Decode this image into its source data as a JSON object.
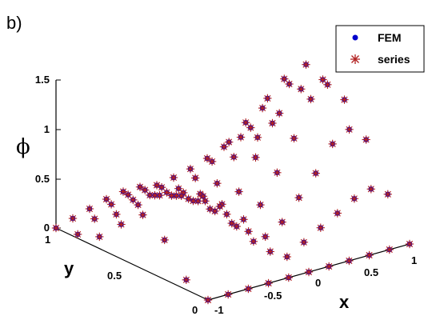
{
  "panel_label": "b)",
  "chart_data": {
    "type": "scatter",
    "view": "3d",
    "xlabel": "x",
    "ylabel": "y",
    "zlabel": "ϕ",
    "x_ticks": [
      "-1",
      "-0.5",
      "0",
      "0.5",
      "1"
    ],
    "y_ticks": [
      "0",
      "0.5",
      "1"
    ],
    "z_ticks": [
      "0",
      "0.5",
      "1",
      "1.5"
    ],
    "xlim": [
      -1,
      1
    ],
    "ylim": [
      0,
      1
    ],
    "zlim": [
      0,
      1.5
    ],
    "grid": false,
    "legend_position": "top-right",
    "series": [
      {
        "name": "FEM",
        "marker": "dot",
        "color": "#0000cc"
      },
      {
        "name": "series",
        "marker": "asterisk",
        "color": "#b22222"
      }
    ],
    "points": [
      {
        "x": -1.0,
        "y": 1.0,
        "z": 0.0
      },
      {
        "x": -1.0,
        "y": 0.857,
        "z": 0.04
      },
      {
        "x": -1.0,
        "y": 0.714,
        "z": 0.12
      },
      {
        "x": -1.0,
        "y": 0.571,
        "z": 0.35
      },
      {
        "x": -1.0,
        "y": 0.429,
        "z": 0.55
      },
      {
        "x": -1.0,
        "y": 0.286,
        "z": 0.4
      },
      {
        "x": -1.0,
        "y": 0.143,
        "z": 0.1
      },
      {
        "x": -0.833,
        "y": 1.0,
        "z": 0.05
      },
      {
        "x": -0.833,
        "y": 0.857,
        "z": 0.15
      },
      {
        "x": -0.833,
        "y": 0.714,
        "z": 0.3
      },
      {
        "x": -0.833,
        "y": 0.571,
        "z": 0.5
      },
      {
        "x": -0.833,
        "y": 0.429,
        "z": 0.7
      },
      {
        "x": -0.833,
        "y": 0.286,
        "z": 0.8
      },
      {
        "x": -0.833,
        "y": 0.143,
        "z": 0.9
      },
      {
        "x": -0.667,
        "y": 1.0,
        "z": 0.1
      },
      {
        "x": -0.667,
        "y": 0.857,
        "z": 0.25
      },
      {
        "x": -0.667,
        "y": 0.714,
        "z": 0.4
      },
      {
        "x": -0.667,
        "y": 0.571,
        "z": 0.55
      },
      {
        "x": -0.667,
        "y": 0.429,
        "z": 0.65
      },
      {
        "x": -0.667,
        "y": 0.286,
        "z": 0.7
      },
      {
        "x": -0.667,
        "y": 0.143,
        "z": 0.75
      },
      {
        "x": -0.5,
        "y": 1.0,
        "z": 0.15
      },
      {
        "x": -0.5,
        "y": 0.857,
        "z": 0.3
      },
      {
        "x": -0.5,
        "y": 0.714,
        "z": 0.4
      },
      {
        "x": -0.5,
        "y": 0.571,
        "z": 0.5
      },
      {
        "x": -0.5,
        "y": 0.429,
        "z": 0.55
      },
      {
        "x": -0.5,
        "y": 0.286,
        "z": 0.55
      },
      {
        "x": -0.5,
        "y": 0.143,
        "z": 0.5
      },
      {
        "x": -0.333,
        "y": 1.0,
        "z": 0.18
      },
      {
        "x": -0.333,
        "y": 0.857,
        "z": 0.3
      },
      {
        "x": -0.333,
        "y": 0.714,
        "z": 0.38
      },
      {
        "x": -0.333,
        "y": 0.571,
        "z": 0.42
      },
      {
        "x": -0.333,
        "y": 0.429,
        "z": 0.42
      },
      {
        "x": -0.333,
        "y": 0.286,
        "z": 0.38
      },
      {
        "x": -0.333,
        "y": 0.143,
        "z": 0.3
      },
      {
        "x": -0.167,
        "y": 1.0,
        "z": 0.18
      },
      {
        "x": -0.167,
        "y": 0.857,
        "z": 0.28
      },
      {
        "x": -0.167,
        "y": 0.714,
        "z": 0.33
      },
      {
        "x": -0.167,
        "y": 0.571,
        "z": 0.35
      },
      {
        "x": -0.167,
        "y": 0.429,
        "z": 0.32
      },
      {
        "x": -0.167,
        "y": 0.286,
        "z": 0.25
      },
      {
        "x": -0.167,
        "y": 0.143,
        "z": 0.15
      },
      {
        "x": 0.0,
        "y": 1.0,
        "z": 0.15
      },
      {
        "x": 0.0,
        "y": 0.857,
        "z": 0.22
      },
      {
        "x": 0.0,
        "y": 0.714,
        "z": 0.27
      },
      {
        "x": 0.0,
        "y": 0.571,
        "z": 0.27
      },
      {
        "x": 0.0,
        "y": 0.429,
        "z": 0.22
      },
      {
        "x": 0.0,
        "y": 0.286,
        "z": 0.15
      },
      {
        "x": 0.0,
        "y": 0.143,
        "z": 0.05
      },
      {
        "x": 0.167,
        "y": 1.0,
        "z": 0.18
      },
      {
        "x": 0.167,
        "y": 0.857,
        "z": 0.28
      },
      {
        "x": 0.167,
        "y": 0.714,
        "z": 0.33
      },
      {
        "x": 0.167,
        "y": 0.571,
        "z": 0.35
      },
      {
        "x": 0.167,
        "y": 0.429,
        "z": 0.32
      },
      {
        "x": 0.167,
        "y": 0.286,
        "z": 0.25
      },
      {
        "x": 0.167,
        "y": 0.143,
        "z": 0.15
      },
      {
        "x": 0.333,
        "y": 1.0,
        "z": 0.22
      },
      {
        "x": 0.333,
        "y": 0.857,
        "z": 0.4
      },
      {
        "x": 0.333,
        "y": 0.714,
        "z": 0.55
      },
      {
        "x": 0.333,
        "y": 0.571,
        "z": 0.65
      },
      {
        "x": 0.333,
        "y": 0.429,
        "z": 0.6
      },
      {
        "x": 0.333,
        "y": 0.286,
        "z": 0.45
      },
      {
        "x": 0.333,
        "y": 0.143,
        "z": 0.25
      },
      {
        "x": 0.5,
        "y": 1.0,
        "z": 0.28
      },
      {
        "x": 0.5,
        "y": 0.857,
        "z": 0.55
      },
      {
        "x": 0.5,
        "y": 0.714,
        "z": 0.8
      },
      {
        "x": 0.5,
        "y": 0.571,
        "z": 0.95
      },
      {
        "x": 0.5,
        "y": 0.429,
        "z": 0.9
      },
      {
        "x": 0.5,
        "y": 0.286,
        "z": 0.65
      },
      {
        "x": 0.5,
        "y": 0.143,
        "z": 0.35
      },
      {
        "x": 0.667,
        "y": 1.0,
        "z": 0.35
      },
      {
        "x": 0.667,
        "y": 0.857,
        "z": 0.7
      },
      {
        "x": 0.667,
        "y": 0.714,
        "z": 1.05
      },
      {
        "x": 0.667,
        "y": 0.571,
        "z": 1.3
      },
      {
        "x": 0.667,
        "y": 0.429,
        "z": 1.25
      },
      {
        "x": 0.667,
        "y": 0.286,
        "z": 0.9
      },
      {
        "x": 0.667,
        "y": 0.143,
        "z": 0.45
      },
      {
        "x": 0.833,
        "y": 1.0,
        "z": 0.4
      },
      {
        "x": 0.833,
        "y": 0.857,
        "z": 0.8
      },
      {
        "x": 0.833,
        "y": 0.714,
        "z": 1.2
      },
      {
        "x": 0.833,
        "y": 0.571,
        "z": 1.45
      },
      {
        "x": 0.833,
        "y": 0.429,
        "z": 1.35
      },
      {
        "x": 0.833,
        "y": 0.286,
        "z": 1.0
      },
      {
        "x": 0.833,
        "y": 0.143,
        "z": 0.5
      },
      {
        "x": 1.0,
        "y": 1.0,
        "z": 0.35
      },
      {
        "x": 1.0,
        "y": 0.857,
        "z": 0.7
      },
      {
        "x": 1.0,
        "y": 0.714,
        "z": 1.05
      },
      {
        "x": 1.0,
        "y": 0.571,
        "z": 1.25
      },
      {
        "x": 1.0,
        "y": 0.429,
        "z": 1.15
      },
      {
        "x": 1.0,
        "y": 0.286,
        "z": 0.85
      },
      {
        "x": 1.0,
        "y": 0.143,
        "z": 0.4
      },
      {
        "x": -1.0,
        "y": 0.0,
        "z": 0.0
      },
      {
        "x": -0.8,
        "y": 0.0,
        "z": 0.0
      },
      {
        "x": -0.6,
        "y": 0.0,
        "z": 0.0
      },
      {
        "x": -0.4,
        "y": 0.0,
        "z": 0.0
      },
      {
        "x": -0.2,
        "y": 0.0,
        "z": 0.0
      },
      {
        "x": 0.0,
        "y": 0.0,
        "z": 0.0
      },
      {
        "x": 0.2,
        "y": 0.0,
        "z": 0.0
      },
      {
        "x": 0.4,
        "y": 0.0,
        "z": 0.0
      },
      {
        "x": 0.6,
        "y": 0.0,
        "z": 0.0
      },
      {
        "x": 0.8,
        "y": 0.0,
        "z": 0.0
      },
      {
        "x": 1.0,
        "y": 0.0,
        "z": 0.0
      }
    ]
  }
}
